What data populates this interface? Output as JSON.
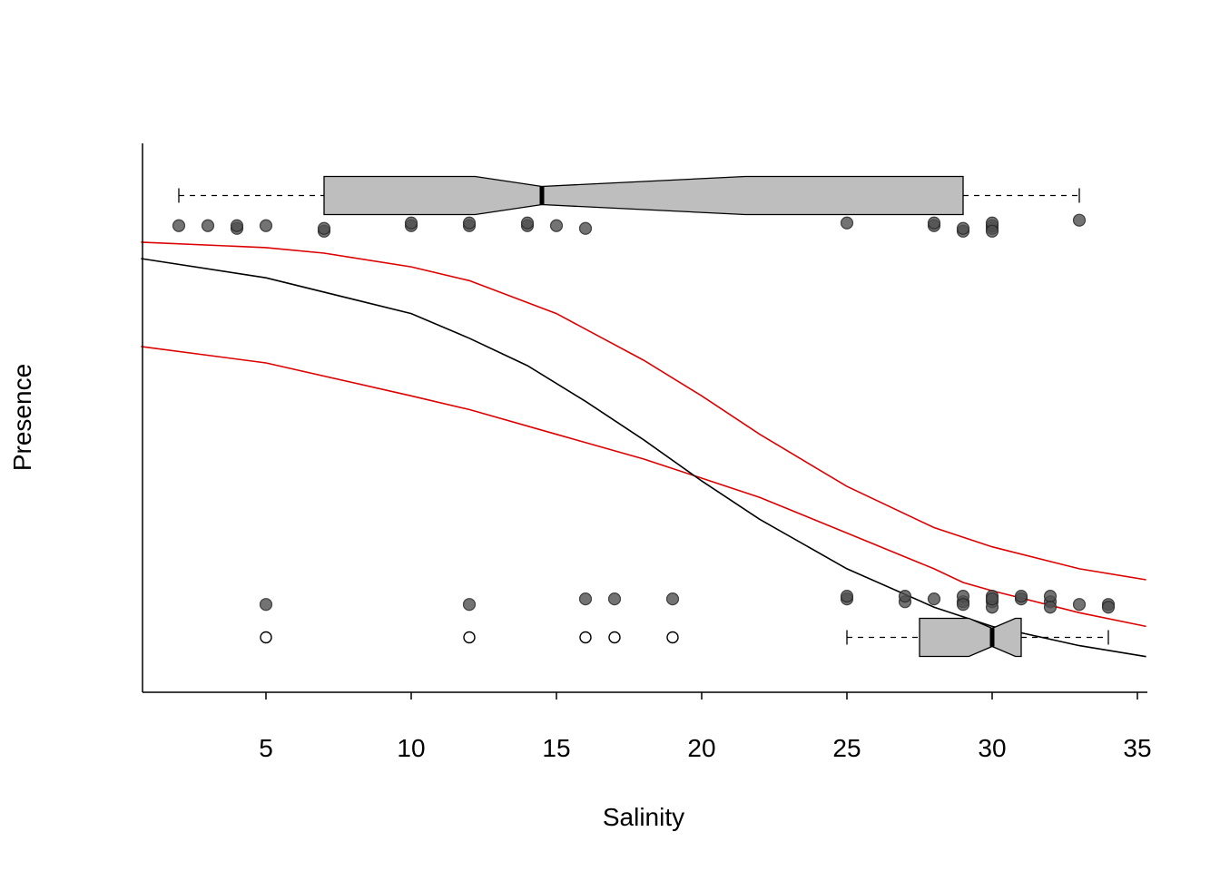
{
  "chart_data": {
    "type": "scatter",
    "title": "",
    "xlabel": "Salinity",
    "ylabel": "Presence",
    "xlim": [
      0.7,
      35.3
    ],
    "ylim": [
      0,
      1
    ],
    "xticks": [
      5,
      10,
      15,
      20,
      25,
      30,
      35
    ],
    "xtick_labels": [
      "5",
      "10",
      "15",
      "20",
      "25",
      "30",
      "35"
    ],
    "grid": false,
    "legend": "none",
    "colors": {
      "fit": "#000000",
      "ci": "#dd0000",
      "points": "#505050",
      "box_fill": "#bebebe"
    },
    "fit_curve": {
      "x": [
        0.7,
        5,
        10,
        12,
        14,
        16,
        18,
        20,
        22,
        25,
        28,
        30,
        33,
        35.3
      ],
      "y": [
        0.79,
        0.755,
        0.69,
        0.645,
        0.595,
        0.53,
        0.46,
        0.385,
        0.315,
        0.225,
        0.155,
        0.12,
        0.085,
        0.065
      ]
    },
    "ci_upper": {
      "x": [
        0.7,
        5,
        7,
        10,
        12,
        15,
        18,
        20,
        22,
        25,
        28,
        30,
        33,
        35.3
      ],
      "y": [
        0.82,
        0.81,
        0.8,
        0.775,
        0.75,
        0.69,
        0.605,
        0.54,
        0.47,
        0.375,
        0.3,
        0.265,
        0.225,
        0.205
      ]
    },
    "ci_lower": {
      "x": [
        0.7,
        5,
        10,
        12,
        15,
        18,
        20,
        22,
        25,
        28,
        29,
        30,
        33,
        35.3
      ],
      "y": [
        0.63,
        0.6,
        0.54,
        0.515,
        0.47,
        0.425,
        0.39,
        0.355,
        0.29,
        0.225,
        0.2,
        0.185,
        0.145,
        0.12
      ]
    },
    "points_present": [
      {
        "x": 2,
        "y": 0.85
      },
      {
        "x": 3,
        "y": 0.85
      },
      {
        "x": 4,
        "y": 0.845
      },
      {
        "x": 4,
        "y": 0.85
      },
      {
        "x": 5,
        "y": 0.85
      },
      {
        "x": 7,
        "y": 0.84
      },
      {
        "x": 7,
        "y": 0.845
      },
      {
        "x": 10,
        "y": 0.85
      },
      {
        "x": 10,
        "y": 0.855
      },
      {
        "x": 12,
        "y": 0.85
      },
      {
        "x": 12,
        "y": 0.855
      },
      {
        "x": 14,
        "y": 0.85
      },
      {
        "x": 14,
        "y": 0.855
      },
      {
        "x": 15,
        "y": 0.85
      },
      {
        "x": 16,
        "y": 0.845
      },
      {
        "x": 25,
        "y": 0.855
      },
      {
        "x": 28,
        "y": 0.85
      },
      {
        "x": 28,
        "y": 0.855
      },
      {
        "x": 29,
        "y": 0.84
      },
      {
        "x": 29,
        "y": 0.845
      },
      {
        "x": 30,
        "y": 0.845
      },
      {
        "x": 30,
        "y": 0.85
      },
      {
        "x": 30,
        "y": 0.855
      },
      {
        "x": 30,
        "y": 0.84
      },
      {
        "x": 33,
        "y": 0.86
      }
    ],
    "points_absent": [
      {
        "x": 5,
        "y": 0.16
      },
      {
        "x": 12,
        "y": 0.16
      },
      {
        "x": 16,
        "y": 0.17
      },
      {
        "x": 17,
        "y": 0.17
      },
      {
        "x": 19,
        "y": 0.17
      },
      {
        "x": 25,
        "y": 0.17
      },
      {
        "x": 25,
        "y": 0.175
      },
      {
        "x": 27,
        "y": 0.165
      },
      {
        "x": 27,
        "y": 0.175
      },
      {
        "x": 28,
        "y": 0.17
      },
      {
        "x": 29,
        "y": 0.165
      },
      {
        "x": 29,
        "y": 0.175
      },
      {
        "x": 29,
        "y": 0.16
      },
      {
        "x": 30,
        "y": 0.165
      },
      {
        "x": 30,
        "y": 0.175
      },
      {
        "x": 30,
        "y": 0.155
      },
      {
        "x": 30,
        "y": 0.17
      },
      {
        "x": 31,
        "y": 0.17
      },
      {
        "x": 31,
        "y": 0.175
      },
      {
        "x": 32,
        "y": 0.165
      },
      {
        "x": 32,
        "y": 0.175
      },
      {
        "x": 32,
        "y": 0.155
      },
      {
        "x": 33,
        "y": 0.16
      },
      {
        "x": 34,
        "y": 0.16
      },
      {
        "x": 34,
        "y": 0.155
      }
    ],
    "boxplot_present": {
      "y_level": 0.905,
      "whisker_low": 2,
      "q1": 7,
      "median": 14.5,
      "q3": 29,
      "whisker_high": 33,
      "notch_low": 12.2,
      "notch_high": 21.5,
      "outliers": []
    },
    "boxplot_absent": {
      "y_level": 0.1,
      "whisker_low": 25,
      "q1": 27.5,
      "median": 30,
      "q3": 31,
      "whisker_high": 34,
      "notch_low": 29.2,
      "notch_high": 30.8,
      "outliers": [
        5,
        12,
        16,
        17,
        19
      ]
    }
  }
}
